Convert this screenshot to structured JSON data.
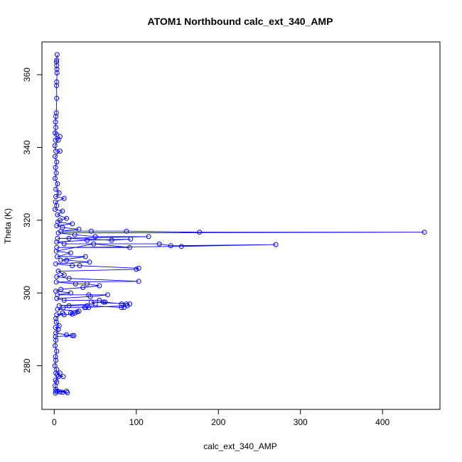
{
  "chart_data": {
    "type": "line",
    "title": "ATOM1 Northbound calc_ext_340_AMP",
    "xlabel": "calc_ext_340_AMP",
    "ylabel": "Theta (K)",
    "xlim": [
      -15,
      470
    ],
    "ylim": [
      268,
      369
    ],
    "x_ticks": [
      0,
      100,
      200,
      300,
      400
    ],
    "y_ticks": [
      280,
      300,
      320,
      340,
      360
    ],
    "x_tick_labels": [
      "0",
      "100",
      "200",
      "300",
      "400"
    ],
    "y_tick_labels": [
      "280",
      "300",
      "320",
      "340",
      "360"
    ],
    "grid": false,
    "series": [
      {
        "name": "",
        "color": "#0000ff",
        "marker": "open-circle",
        "points": [
          [
            3.5,
            365.5
          ],
          [
            3.0,
            364.0
          ],
          [
            2.8,
            363.5
          ],
          [
            3.0,
            362.5
          ],
          [
            3.2,
            361.5
          ],
          [
            3.4,
            360.5
          ],
          [
            3.0,
            358.0
          ],
          [
            2.8,
            357.0
          ],
          [
            3.0,
            353.5
          ],
          [
            2.5,
            349.5
          ],
          [
            2.0,
            348.5
          ],
          [
            1.5,
            347.0
          ],
          [
            2.0,
            345.5
          ],
          [
            1.0,
            344.0
          ],
          [
            3.0,
            343.5
          ],
          [
            1.5,
            342.0
          ],
          [
            7.0,
            343.0
          ],
          [
            5.0,
            342.0
          ],
          [
            0.8,
            340.5
          ],
          [
            2.0,
            339.0
          ],
          [
            7.0,
            339.0
          ],
          [
            1.0,
            337.5
          ],
          [
            3.0,
            336.0
          ],
          [
            1.5,
            334.5
          ],
          [
            2.5,
            333.0
          ],
          [
            1.0,
            331.5
          ],
          [
            4.0,
            330.0
          ],
          [
            2.0,
            328.5
          ],
          [
            6.0,
            327.5
          ],
          [
            2.0,
            326.5
          ],
          [
            12.0,
            326.0
          ],
          [
            1.5,
            325.0
          ],
          [
            3.0,
            324.0
          ],
          [
            1.0,
            323.0
          ],
          [
            10.0,
            322.5
          ],
          [
            4.0,
            321.5
          ],
          [
            15.0,
            320.5
          ],
          [
            7.0,
            320.0
          ],
          [
            4.5,
            319.5
          ],
          [
            22.0,
            319.0
          ],
          [
            3.0,
            318.5
          ],
          [
            10.0,
            318.0
          ],
          [
            30.0,
            317.5
          ],
          [
            8.0,
            317.0
          ],
          [
            45.0,
            317.0
          ],
          [
            88.0,
            317.0
          ],
          [
            177.0,
            316.7
          ],
          [
            451.0,
            316.7
          ],
          [
            5.0,
            316.5
          ],
          [
            25.0,
            316.0
          ],
          [
            50.0,
            315.5
          ],
          [
            115.0,
            315.5
          ],
          [
            4.0,
            315.0
          ],
          [
            18.0,
            315.0
          ],
          [
            70.0,
            314.5
          ],
          [
            93.0,
            314.8
          ],
          [
            40.0,
            314.5
          ],
          [
            3.0,
            314.0
          ],
          [
            12.0,
            313.5
          ],
          [
            128.0,
            313.5
          ],
          [
            142.0,
            313.0
          ],
          [
            270.0,
            313.3
          ],
          [
            155.0,
            312.8
          ],
          [
            3.0,
            312.5
          ],
          [
            92.0,
            312.5
          ],
          [
            48.0,
            313.5
          ],
          [
            2.5,
            311.5
          ],
          [
            20.0,
            311.0
          ],
          [
            3.5,
            310.0
          ],
          [
            38.0,
            310.0
          ],
          [
            8.0,
            309.0
          ],
          [
            15.0,
            309.0
          ],
          [
            43.0,
            308.5
          ],
          [
            2.0,
            308.0
          ],
          [
            22.0,
            307.5
          ],
          [
            31.0,
            307.5
          ],
          [
            103.0,
            306.8
          ],
          [
            100.0,
            306.5
          ],
          [
            5.0,
            306.0
          ],
          [
            12.0,
            305.0
          ],
          [
            3.0,
            304.5
          ],
          [
            18.0,
            304.0
          ],
          [
            103.0,
            303.2
          ],
          [
            2.5,
            303.0
          ],
          [
            26.0,
            302.5
          ],
          [
            40.0,
            302.5
          ],
          [
            55.0,
            302.0
          ],
          [
            35.0,
            301.5
          ],
          [
            8.0,
            301.0
          ],
          [
            2.0,
            300.5
          ],
          [
            20.0,
            300.0
          ],
          [
            4.0,
            299.5
          ],
          [
            42.0,
            299.5
          ],
          [
            65.0,
            299.5
          ],
          [
            44.0,
            299.0
          ],
          [
            3.0,
            298.5
          ],
          [
            12.0,
            298.0
          ],
          [
            55.0,
            298.0
          ],
          [
            60.0,
            297.5
          ],
          [
            62.0,
            297.5
          ],
          [
            82.0,
            297.0
          ],
          [
            88.0,
            297.0
          ],
          [
            92.0,
            297.0
          ],
          [
            45.0,
            297.5
          ],
          [
            50.0,
            297.0
          ],
          [
            6.0,
            296.5
          ],
          [
            18.0,
            296.5
          ],
          [
            40.0,
            296.5
          ],
          [
            85.0,
            296.0
          ],
          [
            82.0,
            296.0
          ],
          [
            89.0,
            296.5
          ],
          [
            37.0,
            296.0
          ],
          [
            38.5,
            296.0
          ],
          [
            42.0,
            296.0
          ],
          [
            11.0,
            296.0
          ],
          [
            4.0,
            295.5
          ],
          [
            30.0,
            295.0
          ],
          [
            28.0,
            294.8
          ],
          [
            25.0,
            294.5
          ],
          [
            20.0,
            294.5
          ],
          [
            22.0,
            294.2
          ],
          [
            12.0,
            294.0
          ],
          [
            3.0,
            294.0
          ],
          [
            10.0,
            294.5
          ],
          [
            2.0,
            293.0
          ],
          [
            2.5,
            292.0
          ],
          [
            6.0,
            291.0
          ],
          [
            1.5,
            290.5
          ],
          [
            5.0,
            290.0
          ],
          [
            2.0,
            289.0
          ],
          [
            15.0,
            288.5
          ],
          [
            22.0,
            288.3
          ],
          [
            24.0,
            288.3
          ],
          [
            1.5,
            288.0
          ],
          [
            2.0,
            287.0
          ],
          [
            1.0,
            285.5
          ],
          [
            3.0,
            284.0
          ],
          [
            1.5,
            282.5
          ],
          [
            2.0,
            281.5
          ],
          [
            0.8,
            280.0
          ],
          [
            3.0,
            279.0
          ],
          [
            2.0,
            278.0
          ],
          [
            7.0,
            278.0
          ],
          [
            3.5,
            277.5
          ],
          [
            11.0,
            277.0
          ],
          [
            5.0,
            277.0
          ],
          [
            1.5,
            276.0
          ],
          [
            3.0,
            275.5
          ],
          [
            1.0,
            274.5
          ],
          [
            2.0,
            273.5
          ],
          [
            4.0,
            273.0
          ],
          [
            15.0,
            273.0
          ],
          [
            7.0,
            272.8
          ],
          [
            10.0,
            272.7
          ],
          [
            16.0,
            272.6
          ],
          [
            2.0,
            273.0
          ],
          [
            1.5,
            272.5
          ]
        ]
      }
    ]
  }
}
